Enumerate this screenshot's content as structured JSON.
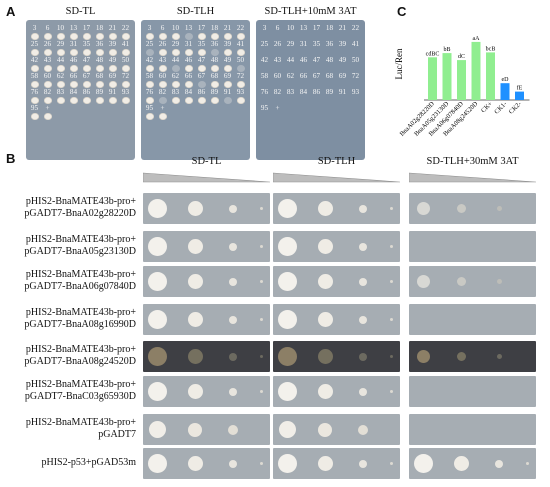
{
  "panelA": {
    "letter": "A",
    "plates": [
      {
        "title": "SD-TL"
      },
      {
        "title": "SD-TLH"
      },
      {
        "title": "SD-TLH+10mM 3AT"
      }
    ],
    "rows": [
      [
        "3",
        "6",
        "10",
        "13",
        "17",
        "18",
        "21",
        "22"
      ],
      [
        "25",
        "26",
        "29",
        "31",
        "35",
        "36",
        "39",
        "41"
      ],
      [
        "42",
        "43",
        "44",
        "46",
        "47",
        "48",
        "49",
        "50"
      ],
      [
        "58",
        "60",
        "62",
        "66",
        "67",
        "68",
        "69",
        "72"
      ],
      [
        "76",
        "82",
        "83",
        "84",
        "86",
        "89",
        "91",
        "93"
      ],
      [
        "95",
        "+",
        "",
        "",
        "",
        "",
        "",
        ""
      ]
    ]
  },
  "panelB": {
    "letter": "B",
    "conditions": [
      "SD-TL",
      "SD-TLH",
      "SD-TLH+30mM 3AT"
    ],
    "rows": [
      {
        "line1": "pHIS2-BnaMATE43b-pro+",
        "line2": "pGADT7-BnaA02g28220D"
      },
      {
        "line1": "pHIS2-BnaMATE43b-pro+",
        "line2": "pGADT7-BnaA05g23130D"
      },
      {
        "line1": "pHIS2-BnaMATE43b-pro+",
        "line2": "pGADT7-BnaA06g07840D"
      },
      {
        "line1": "pHIS2-BnaMATE43b-pro+",
        "line2": "pGADT7-BnaA08g16990D"
      },
      {
        "line1": "pHIS2-BnaMATE43b-pro+",
        "line2": "pGADT7-BnaA08g24520D"
      },
      {
        "line1": "pHIS2-BnaMATE43b-pro+",
        "line2": "pGADT7-BnaC03g65930D"
      },
      {
        "line1": "pHIS2-BnaMATE43b-pro+",
        "line2": "pGADT7"
      },
      {
        "line1": "",
        "line2": "pHIS2-p53+pGAD53m"
      }
    ]
  },
  "panelC": {
    "letter": "C",
    "chart_data": {
      "type": "bar",
      "ylabel": "Luc/Ren",
      "categories": [
        "BnaA02g28220D",
        "BnaA05g23130D",
        "BnaA06g07840D",
        "BnaA08g24520D",
        "CK+",
        "CK1-",
        "CK2-"
      ],
      "values": [
        0.061,
        0.067,
        0.057,
        0.083,
        0.068,
        0.024,
        0.012
      ],
      "letters": [
        "cdBC",
        "bB",
        "dC",
        "aA",
        "bcB",
        "eD",
        "fE"
      ],
      "colors": [
        "#90ee90",
        "#90ee90",
        "#90ee90",
        "#90ee90",
        "#90ee90",
        "#1e90ff",
        "#1e90ff"
      ],
      "ylim": [
        0,
        0.1
      ]
    }
  }
}
